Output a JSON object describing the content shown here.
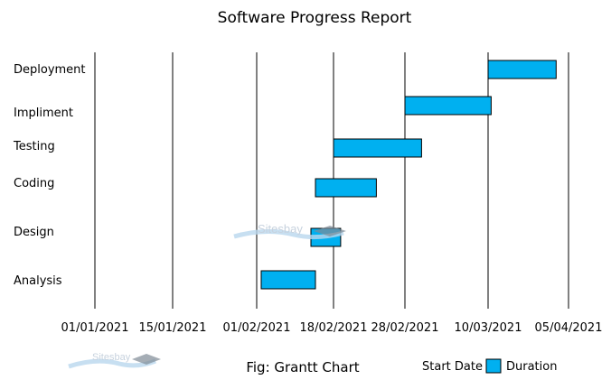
{
  "chart_data": {
    "type": "bar",
    "subtype": "gantt",
    "orientation": "horizontal",
    "title": "Software Progress Report",
    "caption": "Fig: Grantt Chart",
    "categories": [
      "Deployment",
      "Impliment",
      "Testing",
      "Coding",
      "Design",
      "Analysis"
    ],
    "x_ticks": [
      "01/01/2021",
      "15/01/2021",
      "01/02/2021",
      "18/02/2021",
      "28/02/2021",
      "10/03/2021",
      "05/04/2021"
    ],
    "tasks": [
      {
        "name": "Deployment",
        "start": "2021-03-10",
        "end": "2021-04-01"
      },
      {
        "name": "Impliment",
        "start": "2021-02-28",
        "end": "2021-03-11"
      },
      {
        "name": "Testing",
        "start": "2021-02-18",
        "end": "2021-03-02"
      },
      {
        "name": "Coding",
        "start": "2021-02-14",
        "end": "2021-02-24"
      },
      {
        "name": "Design",
        "start": "2021-02-13",
        "end": "2021-02-19"
      },
      {
        "name": "Analysis",
        "start": "2021-02-02",
        "end": "2021-02-14"
      }
    ],
    "series": [
      {
        "name": "Start Date",
        "color": "none"
      },
      {
        "name": "Duration",
        "color": "#00b0f0"
      }
    ],
    "grid": "vertical",
    "legend_position": "bottom-right"
  },
  "watermark": {
    "text": "Sitesbay"
  }
}
